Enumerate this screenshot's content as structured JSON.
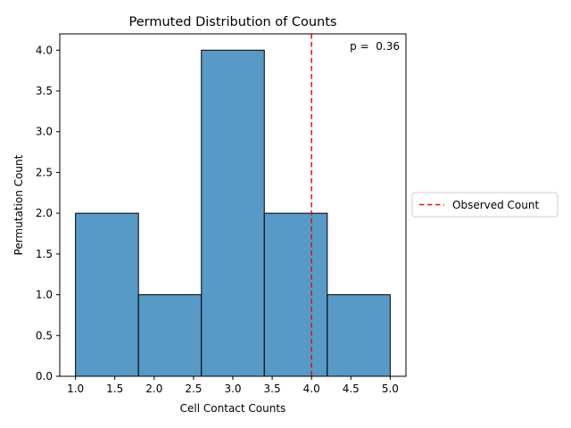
{
  "chart_data": {
    "type": "bar",
    "subtype": "histogram",
    "title": "Permuted Distribution of Counts",
    "xlabel": "Cell Contact Counts",
    "ylabel": "Permutation Count",
    "xlim": [
      0.8,
      5.2
    ],
    "ylim": [
      0,
      4.2
    ],
    "xticks": [
      "1.0",
      "1.5",
      "2.0",
      "2.5",
      "3.0",
      "3.5",
      "4.0",
      "4.5",
      "5.0"
    ],
    "yticks": [
      "0.0",
      "0.5",
      "1.0",
      "1.5",
      "2.0",
      "2.5",
      "3.0",
      "3.5",
      "4.0"
    ],
    "bins": [
      {
        "start": 1.0,
        "end": 1.8,
        "count": 2
      },
      {
        "start": 1.8,
        "end": 2.6,
        "count": 1
      },
      {
        "start": 2.6,
        "end": 3.4,
        "count": 4
      },
      {
        "start": 3.4,
        "end": 4.2,
        "count": 2
      },
      {
        "start": 4.2,
        "end": 5.0,
        "count": 1
      }
    ],
    "bar_color": "#5799c7",
    "observed": {
      "x": 4.0,
      "label": "Observed Count",
      "color": "#e3120b"
    },
    "annotation": "p =  0.36",
    "legend_position": "center-right-outside",
    "grid": false
  }
}
